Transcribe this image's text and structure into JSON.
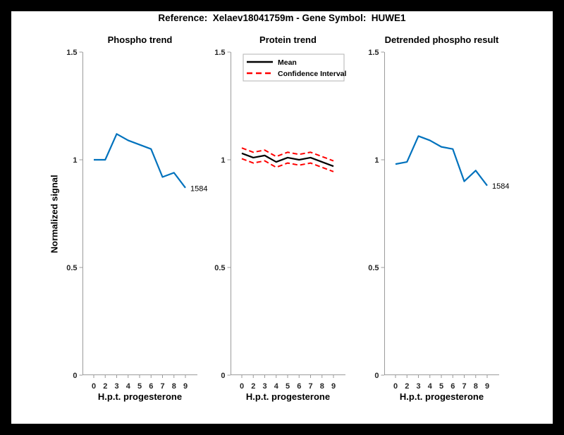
{
  "figure": {
    "title": "Reference:  Xelaev18041759m - Gene Symbol:  HUWE1",
    "background_color": "#ffffff",
    "frame_color": "#000000"
  },
  "colors": {
    "line_blue": "#0072BD",
    "line_red": "#FF0000",
    "line_black": "#000000",
    "axis_gray": "#9b9b9b",
    "tick_text": "#262626"
  },
  "axes": {
    "ylabel": "Normalized signal",
    "yticks": [
      {
        "label": "1.5",
        "value": 1.5
      },
      {
        "label": "1",
        "value": 1.0
      },
      {
        "label": "0.5",
        "value": 0.5
      },
      {
        "label": "0",
        "value": 0.0
      }
    ]
  },
  "chart_data": [
    {
      "type": "line",
      "title": "Phospho trend",
      "xlabel": "H.p.t. progesterone",
      "ylabel": "Normalized signal",
      "x_labels": [
        "0",
        "2",
        "3",
        "4",
        "5",
        "6",
        "7",
        "8",
        "9"
      ],
      "ylim": [
        0,
        1.5
      ],
      "grid": false,
      "series": [
        {
          "name": "phospho-signal",
          "color": "#0072BD",
          "line_style": "solid",
          "width": 2.2,
          "values": [
            1.0,
            1.0,
            1.12,
            1.09,
            1.07,
            1.05,
            0.92,
            0.94,
            0.87
          ]
        }
      ],
      "annotation": {
        "text": "1584",
        "at_index": 8
      }
    },
    {
      "type": "line",
      "title": "Protein trend",
      "xlabel": "H.p.t. progesterone",
      "x_labels": [
        "0",
        "2",
        "3",
        "4",
        "5",
        "6",
        "7",
        "8",
        "9"
      ],
      "ylim": [
        0,
        1.5
      ],
      "grid": false,
      "series": [
        {
          "name": "mean",
          "color": "#000000",
          "line_style": "solid",
          "width": 2.2,
          "values": [
            1.03,
            1.01,
            1.02,
            0.99,
            1.01,
            1.0,
            1.01,
            0.99,
            0.97
          ]
        },
        {
          "name": "confidence-interval-upper",
          "color": "#FF0000",
          "line_style": "dashed",
          "width": 2.0,
          "values": [
            1.055,
            1.035,
            1.045,
            1.015,
            1.035,
            1.025,
            1.035,
            1.015,
            0.995
          ]
        },
        {
          "name": "confidence-interval-lower",
          "color": "#FF0000",
          "line_style": "dashed",
          "width": 2.0,
          "values": [
            1.005,
            0.985,
            0.995,
            0.965,
            0.985,
            0.975,
            0.985,
            0.965,
            0.945
          ]
        }
      ],
      "legend": {
        "position": "northwest",
        "entries": [
          {
            "label": "Mean",
            "color": "#000000",
            "line_style": "solid"
          },
          {
            "label": "Confidence Interval",
            "color": "#FF0000",
            "line_style": "dashed"
          }
        ]
      }
    },
    {
      "type": "line",
      "title": "Detrended phospho result",
      "xlabel": "H.p.t. progesterone",
      "x_labels": [
        "0",
        "2",
        "3",
        "4",
        "5",
        "6",
        "7",
        "8",
        "9"
      ],
      "ylim": [
        0,
        1.5
      ],
      "grid": false,
      "series": [
        {
          "name": "detrended-phospho-signal",
          "color": "#0072BD",
          "line_style": "solid",
          "width": 2.2,
          "values": [
            0.98,
            0.99,
            1.11,
            1.09,
            1.06,
            1.05,
            0.9,
            0.95,
            0.88
          ]
        }
      ],
      "annotation": {
        "text": "1584",
        "at_index": 8
      }
    }
  ]
}
